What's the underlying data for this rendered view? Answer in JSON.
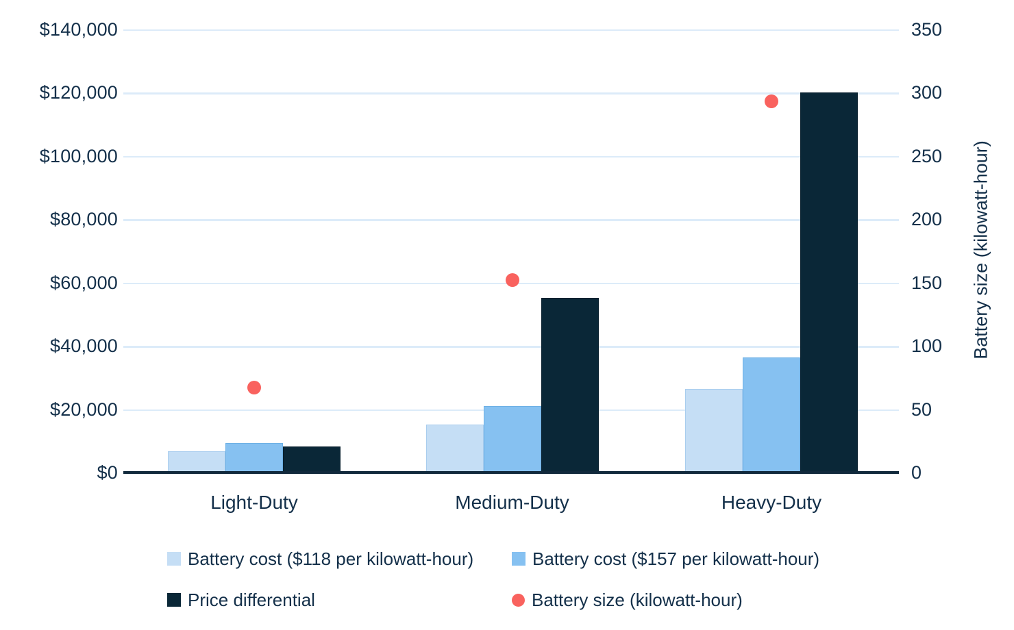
{
  "chart_data": {
    "type": "bar",
    "title": "",
    "categories": [
      "Light-Duty",
      "Medium-Duty",
      "Heavy-Duty"
    ],
    "series": [
      {
        "key": "battery-cost-118",
        "name": "Battery cost ($118 per kilowatt-hour)",
        "type": "bar",
        "axis": "left",
        "color": "#c5def5",
        "border": "#a9cdee",
        "values": [
          6800,
          15100,
          26300
        ]
      },
      {
        "key": "battery-cost-157",
        "name": "Battery cost ($157 per kilowatt-hour)",
        "type": "bar",
        "axis": "left",
        "color": "#86c1f1",
        "border": "#6db0e5",
        "values": [
          9300,
          20900,
          36300
        ]
      },
      {
        "key": "price-differential",
        "name": "Price differential",
        "type": "bar",
        "axis": "left",
        "color": "#0a2737",
        "border": "#081f2d",
        "values": [
          8200,
          55100,
          120000
        ]
      },
      {
        "key": "battery-size",
        "name": "Battery size (kilowatt-hour)",
        "type": "scatter",
        "axis": "right",
        "color": "#f9625e",
        "values": [
          67,
          152,
          293
        ]
      }
    ],
    "left_axis": {
      "range": [
        0,
        140000
      ],
      "tick_step": 20000,
      "tick_labels": [
        "$0",
        "$20,000",
        "$40,000",
        "$60,000",
        "$80,000",
        "$100,000",
        "$120,000",
        "$140,000"
      ]
    },
    "right_axis": {
      "label": "Battery size (kilowatt-hour)",
      "range": [
        0,
        350
      ],
      "tick_step": 50,
      "tick_labels": [
        "0",
        "50",
        "100",
        "150",
        "200",
        "250",
        "300",
        "350"
      ]
    },
    "grid": "horizontal-only",
    "legend_position": "bottom",
    "colors": {
      "background": "#ffffff",
      "gridline": "#dcebf9",
      "axis_line": "#11293c",
      "text": "#14304a"
    }
  }
}
